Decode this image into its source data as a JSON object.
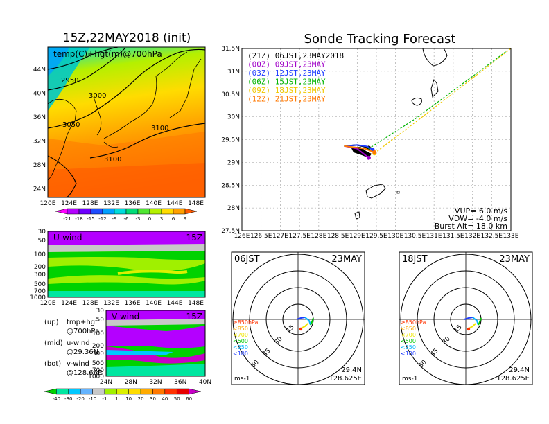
{
  "left": {
    "title": "15Z,22MAY2018 (init)",
    "map_label": "temp(C)+hgt(m)@700hPa",
    "lat_ticks": [
      "44N",
      "40N",
      "36N",
      "32N",
      "28N",
      "24N"
    ],
    "lon_ticks": [
      "120E",
      "124E",
      "128E",
      "132E",
      "136E",
      "140E",
      "144E",
      "148E"
    ],
    "contour_labels": [
      "2950",
      "3000",
      "3050",
      "3100",
      "3100"
    ],
    "temp_colorbar": [
      "-21",
      "-18",
      "-15",
      "-12",
      "-9",
      "-6",
      "-3",
      "0",
      "3",
      "6",
      "9"
    ],
    "temp_colors": [
      "#ff00ff",
      "#b400ff",
      "#6e00ff",
      "#1f4dff",
      "#00a0ff",
      "#00dcdc",
      "#00dc78",
      "#50e632",
      "#b4f000",
      "#ffdc00",
      "#ffa000",
      "#ff5a00"
    ],
    "u_wind": {
      "label": "U-wind",
      "time": "15Z",
      "levels": [
        "30",
        "50",
        "100",
        "200",
        "300",
        "500",
        "700",
        "1000"
      ],
      "lon_ticks": [
        "120E",
        "124E",
        "128E",
        "132E",
        "136E",
        "140E",
        "144E",
        "148E"
      ]
    },
    "v_wind": {
      "label": "V-wind",
      "time": "15Z",
      "levels": [
        "30",
        "50",
        "100",
        "200",
        "300",
        "500",
        "700",
        "1000"
      ],
      "lat_ticks": [
        "24N",
        "28N",
        "32N",
        "36N",
        "40N"
      ]
    },
    "legend_lines": [
      {
        "a": "(up)",
        "b": "tmp+hgt",
        "c": "@700hPa"
      },
      {
        "a": "(mid)",
        "b": "u-wind",
        "c": "@29.36N"
      },
      {
        "a": "(bot)",
        "b": "v-wind",
        "c": "@128.66E"
      }
    ],
    "wind_colorbar": [
      "-40",
      "-30",
      "-20",
      "-10",
      "-1",
      "1",
      "10",
      "20",
      "30",
      "40",
      "50",
      "60"
    ],
    "wind_colors": [
      "#00d200",
      "#00e6a0",
      "#00c8ff",
      "#64b4ff",
      "#c8c8c8",
      "#a0f000",
      "#dcf000",
      "#ffdc00",
      "#ffaa00",
      "#ff7800",
      "#ff3200",
      "#e60000",
      "#c800c8"
    ]
  },
  "main": {
    "title": "Sonde Tracking Forecast",
    "schedule": [
      {
        "text": "(21Z) 06JST,23MAY2018",
        "color": "#000000"
      },
      {
        "text": "(00Z) 09JST,23MAY",
        "color": "#a000c8"
      },
      {
        "text": "(03Z) 12JST,23MAY",
        "color": "#1e3cff"
      },
      {
        "text": "(06Z) 15JST,23MAY",
        "color": "#00b400"
      },
      {
        "text": "(09Z) 18JST,23MAY",
        "color": "#f0c800"
      },
      {
        "text": "(12Z) 21JST,23MAY",
        "color": "#ff7800"
      }
    ],
    "params": [
      "VUP= 6.0 m/s",
      "VDW= -4.0 m/s",
      "Burst Alt= 18.0 km"
    ],
    "lat_ticks": [
      "31.5N",
      "31N",
      "30.5N",
      "30N",
      "29.5N",
      "29N",
      "28.5N",
      "28N",
      "27.5N"
    ],
    "lon_ticks": [
      "126E",
      "126.5E",
      "127E",
      "127.5E",
      "128E",
      "128.5E",
      "129E",
      "129.5E",
      "130E",
      "130.5E",
      "131E",
      "131.5E",
      "132E",
      "132.5E",
      "133E"
    ]
  },
  "chart_data": [
    {
      "type": "line",
      "title": "Sonde Tracking Forecast",
      "xlim": [
        126,
        133
      ],
      "ylim": [
        27.5,
        31.5
      ],
      "series": [
        {
          "name": "(21Z) 06JST,23MAY2018",
          "x": [
            128.66,
            129.0,
            129.3
          ],
          "y": [
            29.36,
            29.38,
            29.32
          ]
        },
        {
          "name": "(00Z) 09JST,23MAY",
          "x": [
            128.66,
            129.0,
            129.3
          ],
          "y": [
            29.36,
            29.3,
            29.1
          ]
        },
        {
          "name": "(03Z) 12JST,23MAY",
          "x": [
            128.66,
            129.0,
            129.25,
            129.4
          ],
          "y": [
            29.36,
            29.38,
            29.35,
            29.28
          ]
        },
        {
          "name": "(06Z) 15JST,23MAY",
          "x": [
            128.66,
            129.3,
            130.5,
            132.9
          ],
          "y": [
            29.36,
            29.3,
            29.95,
            31.45
          ]
        },
        {
          "name": "(09Z) 18JST,23MAY",
          "x": [
            129.45,
            130.7,
            133.0
          ],
          "y": [
            29.2,
            30.0,
            31.5
          ]
        },
        {
          "name": "(12Z) 21JST,23MAY",
          "x": [
            128.66,
            129.2,
            129.45
          ],
          "y": [
            29.36,
            29.3,
            29.22
          ]
        }
      ]
    },
    {
      "type": "polar",
      "title": "06JST 23MAY",
      "rings": [
        "15",
        "30",
        "45",
        "60"
      ],
      "pressure_labels": [
        "≥850hPa",
        "<850",
        "<700",
        "<500",
        "<250",
        "<100"
      ],
      "pressure_colors": [
        "#ff3200",
        "#ffaa00",
        "#f0e600",
        "#00c800",
        "#00b4ff",
        "#1e3cff"
      ],
      "location": [
        "29.4N",
        "128.625E"
      ],
      "unit": "ms-1"
    },
    {
      "type": "polar",
      "title": "18JST 23MAY",
      "rings": [
        "15",
        "30",
        "45",
        "60"
      ],
      "pressure_labels": [
        "≥850hPa",
        "<850",
        "<700",
        "<500",
        "<250",
        "<100"
      ],
      "pressure_colors": [
        "#ff3200",
        "#ffaa00",
        "#f0e600",
        "#00c800",
        "#00b4ff",
        "#1e3cff"
      ],
      "location": [
        "29.4N",
        "128.625E"
      ],
      "unit": "ms-1"
    }
  ]
}
